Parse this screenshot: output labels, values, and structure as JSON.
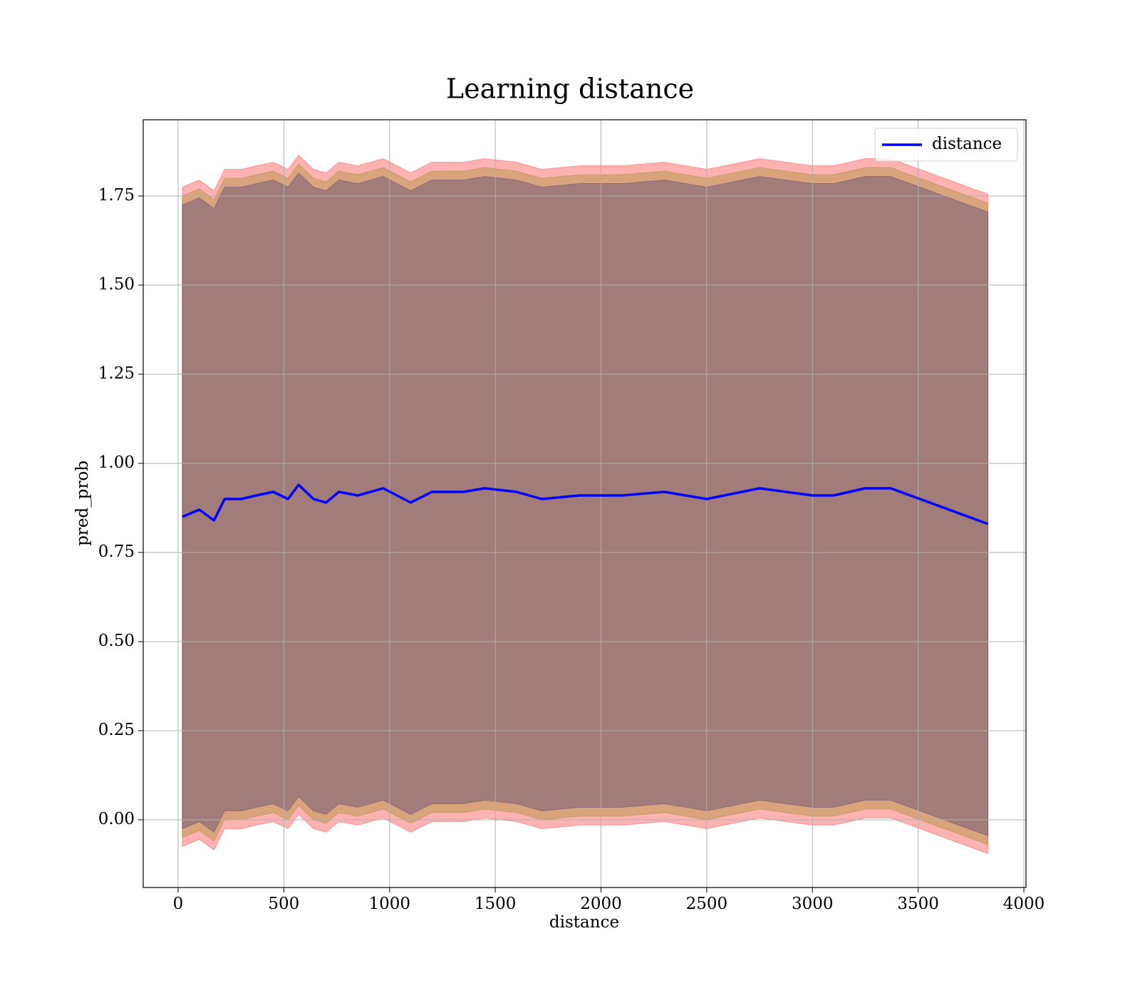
{
  "chart_data": {
    "type": "line",
    "title": "Learning distance",
    "x_label": "distance",
    "y_label": "pred_prob",
    "x": [
      20,
      100,
      170,
      220,
      300,
      370,
      450,
      520,
      570,
      640,
      700,
      760,
      850,
      970,
      1100,
      1200,
      1350,
      1450,
      1600,
      1720,
      1900,
      2100,
      2300,
      2500,
      2750,
      3000,
      3100,
      3250,
      3370,
      3830
    ],
    "series": [
      {
        "name": "distance",
        "color": "#0000ff",
        "values": [
          0.85,
          0.87,
          0.84,
          0.9,
          0.9,
          0.91,
          0.92,
          0.9,
          0.94,
          0.9,
          0.89,
          0.92,
          0.91,
          0.93,
          0.89,
          0.92,
          0.92,
          0.93,
          0.92,
          0.9,
          0.91,
          0.91,
          0.92,
          0.9,
          0.93,
          0.91,
          0.91,
          0.93,
          0.93,
          0.83
        ]
      }
    ],
    "bands": [
      {
        "color": "#ff0000",
        "opacity": 0.3,
        "upper": [
          1.775,
          1.795,
          1.765,
          1.825,
          1.825,
          1.835,
          1.845,
          1.825,
          1.865,
          1.825,
          1.815,
          1.845,
          1.835,
          1.855,
          1.815,
          1.845,
          1.845,
          1.855,
          1.845,
          1.825,
          1.835,
          1.835,
          1.845,
          1.825,
          1.855,
          1.835,
          1.835,
          1.855,
          1.855,
          1.755
        ],
        "lower": [
          -0.075,
          -0.055,
          -0.085,
          -0.025,
          -0.025,
          -0.015,
          -0.005,
          -0.025,
          0.015,
          -0.025,
          -0.035,
          -0.005,
          -0.015,
          0.005,
          -0.035,
          -0.005,
          -0.005,
          0.005,
          -0.005,
          -0.025,
          -0.015,
          -0.015,
          -0.005,
          -0.025,
          0.005,
          -0.015,
          -0.015,
          0.005,
          0.005,
          -0.095
        ]
      },
      {
        "color": "#808000",
        "opacity": 0.3,
        "upper": [
          1.75,
          1.77,
          1.74,
          1.8,
          1.8,
          1.81,
          1.82,
          1.8,
          1.84,
          1.8,
          1.79,
          1.82,
          1.81,
          1.83,
          1.79,
          1.82,
          1.82,
          1.83,
          1.82,
          1.8,
          1.81,
          1.81,
          1.82,
          1.8,
          1.83,
          1.81,
          1.81,
          1.83,
          1.83,
          1.73
        ],
        "lower": [
          -0.05,
          -0.03,
          -0.06,
          0.0,
          0.0,
          0.01,
          0.02,
          0.0,
          0.04,
          0.0,
          -0.01,
          0.02,
          0.01,
          0.03,
          -0.01,
          0.02,
          0.02,
          0.03,
          0.02,
          0.0,
          0.01,
          0.01,
          0.02,
          0.0,
          0.03,
          0.01,
          0.01,
          0.03,
          0.03,
          -0.07
        ]
      },
      {
        "color": "#262478",
        "opacity": 0.3,
        "upper": [
          1.725,
          1.745,
          1.715,
          1.775,
          1.775,
          1.785,
          1.795,
          1.775,
          1.815,
          1.775,
          1.765,
          1.795,
          1.785,
          1.805,
          1.765,
          1.795,
          1.795,
          1.805,
          1.795,
          1.775,
          1.785,
          1.785,
          1.795,
          1.775,
          1.805,
          1.785,
          1.785,
          1.805,
          1.805,
          1.705
        ],
        "lower": [
          -0.025,
          -0.005,
          -0.035,
          0.025,
          0.025,
          0.035,
          0.045,
          0.025,
          0.065,
          0.025,
          0.015,
          0.045,
          0.035,
          0.055,
          0.015,
          0.045,
          0.045,
          0.055,
          0.045,
          0.025,
          0.035,
          0.035,
          0.045,
          0.025,
          0.055,
          0.035,
          0.035,
          0.055,
          0.055,
          -0.045
        ]
      }
    ],
    "xlim": [
      -165,
      4010
    ],
    "ylim": [
      -0.19,
      1.964
    ],
    "xticks": [
      0,
      500,
      1000,
      1500,
      2000,
      2500,
      3000,
      3500,
      4000
    ],
    "yticks": [
      {
        "value": 0,
        "label": "0.00"
      },
      {
        "value": 0.25,
        "label": "0.25"
      },
      {
        "value": 0.5,
        "label": "0.50"
      },
      {
        "value": 0.75,
        "label": "0.75"
      },
      {
        "value": 1,
        "label": "1.00"
      },
      {
        "value": 1.25,
        "label": "1.25"
      },
      {
        "value": 1.5,
        "label": "1.50"
      },
      {
        "value": 1.75,
        "label": "1.75"
      }
    ],
    "grid": true,
    "legend": "upper right"
  }
}
